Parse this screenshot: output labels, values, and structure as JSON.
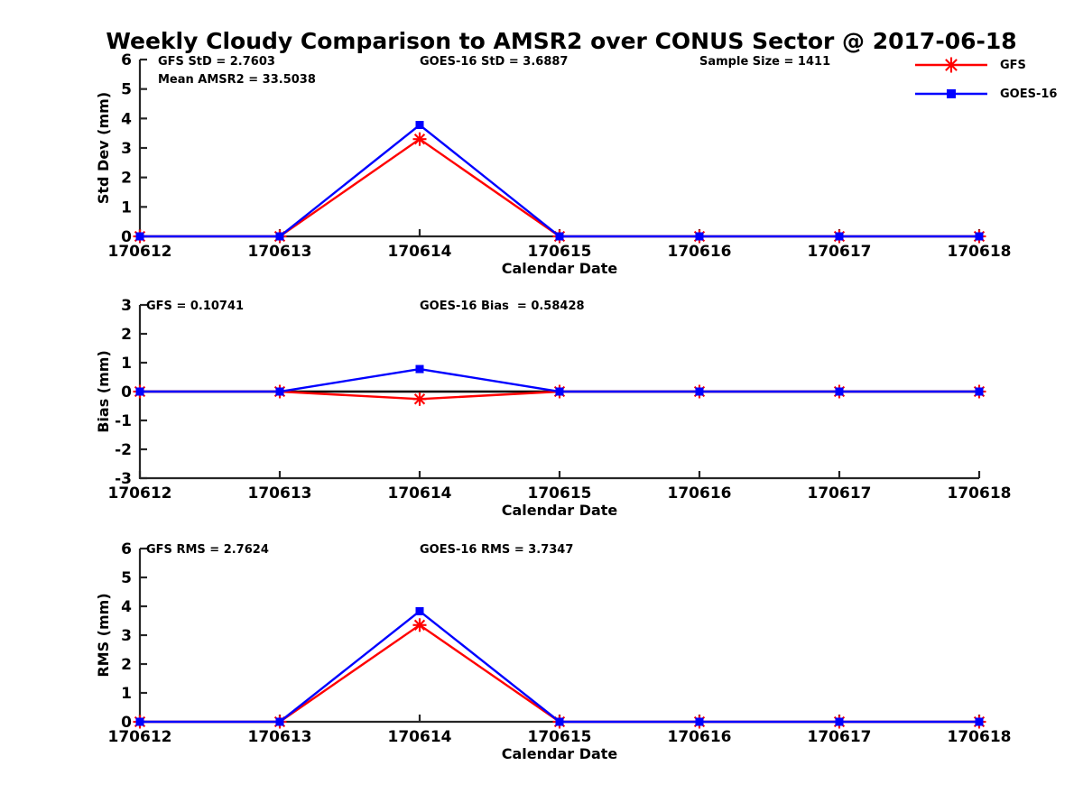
{
  "title": "Weekly Cloudy Comparison to AMSR2 over CONUS Sector @ 2017-06-18",
  "colors": {
    "axis": "#262626",
    "zero_line": "#000000",
    "background": "#ffffff",
    "gfs": "#ff0000",
    "goes16": "#0000ff"
  },
  "legend": {
    "items": [
      {
        "label": "GFS",
        "color": "#ff0000",
        "marker": "asterisk"
      },
      {
        "label": "GOES-16",
        "color": "#0000ff",
        "marker": "square"
      }
    ]
  },
  "x_axis": {
    "label": "Calendar Date",
    "categories": [
      "170612",
      "170613",
      "170614",
      "170615",
      "170616",
      "170617",
      "170618"
    ]
  },
  "chart_data": [
    {
      "type": "line",
      "name": "std-dev-plot",
      "ylabel": "Std Dev (mm)",
      "ylim": [
        0,
        6
      ],
      "yticks": [
        6,
        5,
        4,
        3,
        2,
        1,
        0
      ],
      "zero_line": false,
      "categories": [
        "170612",
        "170613",
        "170614",
        "170615",
        "170616",
        "170617",
        "170618"
      ],
      "series": [
        {
          "name": "GFS",
          "color": "#ff0000",
          "marker": "asterisk",
          "values": [
            0,
            0,
            3.3,
            0,
            0,
            0,
            0
          ]
        },
        {
          "name": "GOES-16",
          "color": "#0000ff",
          "marker": "square",
          "values": [
            0,
            0,
            3.78,
            0,
            0,
            0,
            0
          ]
        }
      ],
      "annotations": [
        {
          "text": "GFS StD = 2.7603",
          "col": 0,
          "row": 0
        },
        {
          "text": "Mean AMSR2 = 33.5038",
          "col": 0,
          "row": 1
        },
        {
          "text": "GOES-16 StD = 3.6887",
          "col": 1,
          "row": 0
        },
        {
          "text": "Sample Size = 1411",
          "col": 2,
          "row": 0
        }
      ]
    },
    {
      "type": "line",
      "name": "bias-plot",
      "ylabel": "Bias (mm)",
      "ylim": [
        -3,
        3
      ],
      "yticks": [
        3,
        2,
        1,
        0,
        -1,
        -2,
        -3
      ],
      "zero_line": true,
      "categories": [
        "170612",
        "170613",
        "170614",
        "170615",
        "170616",
        "170617",
        "170618"
      ],
      "series": [
        {
          "name": "GFS",
          "color": "#ff0000",
          "marker": "asterisk",
          "values": [
            0,
            0,
            -0.26,
            0,
            0,
            0,
            0
          ]
        },
        {
          "name": "GOES-16",
          "color": "#0000ff",
          "marker": "square",
          "values": [
            0,
            0,
            0.78,
            0,
            0,
            0,
            0
          ]
        }
      ],
      "annotations": [
        {
          "text": "GFS = 0.10741",
          "col": 0,
          "row": 0
        },
        {
          "text": "GOES-16 Bias  = 0.58428",
          "col": 1,
          "row": 0
        }
      ]
    },
    {
      "type": "line",
      "name": "rms-plot",
      "ylabel": "RMS (mm)",
      "ylim": [
        0,
        6
      ],
      "yticks": [
        6,
        5,
        4,
        3,
        2,
        1,
        0
      ],
      "zero_line": false,
      "categories": [
        "170612",
        "170613",
        "170614",
        "170615",
        "170616",
        "170617",
        "170618"
      ],
      "series": [
        {
          "name": "GFS",
          "color": "#ff0000",
          "marker": "asterisk",
          "values": [
            0,
            0,
            3.35,
            0,
            0,
            0,
            0
          ]
        },
        {
          "name": "GOES-16",
          "color": "#0000ff",
          "marker": "square",
          "values": [
            0,
            0,
            3.83,
            0,
            0,
            0,
            0
          ]
        }
      ],
      "annotations": [
        {
          "text": "GFS RMS = 2.7624",
          "col": 0,
          "row": 0
        },
        {
          "text": "GOES-16 RMS = 3.7347",
          "col": 1,
          "row": 0
        }
      ]
    }
  ]
}
